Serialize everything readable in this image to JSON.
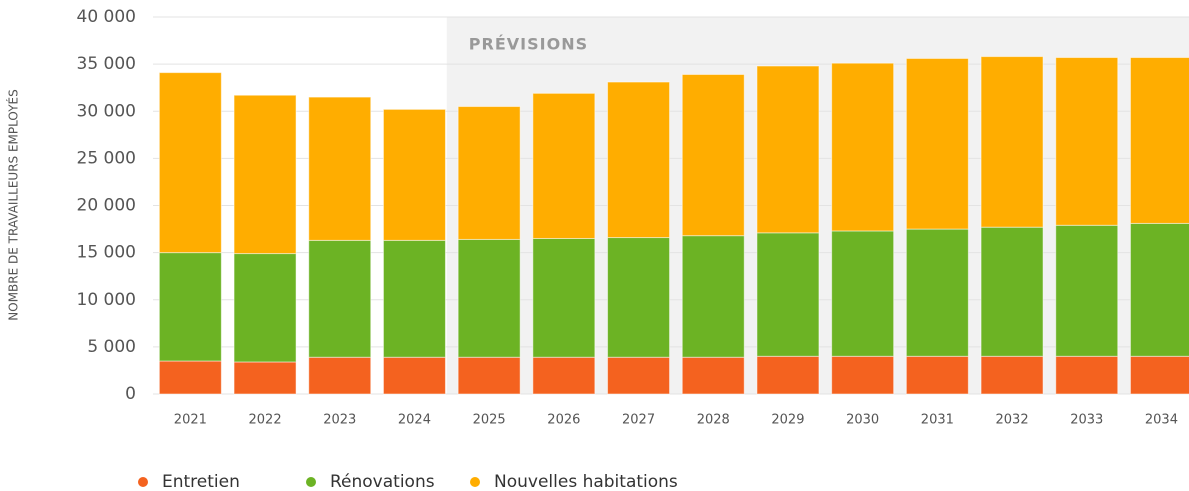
{
  "chart_data": {
    "type": "stacked_bar",
    "y_axis_label": "NOMBRE DE TRAVAILLEURS EMPLOYÉS",
    "annotation": "PRÉVISIONS",
    "shaded_from": "2025",
    "categories": [
      "2021",
      "2022",
      "2023",
      "2024",
      "2025",
      "2026",
      "2027",
      "2028",
      "2029",
      "2030",
      "2031",
      "2032",
      "2033",
      "2034"
    ],
    "series": [
      {
        "name": "Entretien",
        "color": "#f4621f",
        "values": [
          3500,
          3400,
          3900,
          3900,
          3900,
          3900,
          3900,
          3900,
          4000,
          4000,
          4000,
          4000,
          4000,
          4000
        ]
      },
      {
        "name": "Rénovations",
        "color": "#6cb324",
        "values": [
          11500,
          11500,
          12400,
          12400,
          12500,
          12600,
          12700,
          12900,
          13100,
          13300,
          13500,
          13700,
          13900,
          14100
        ]
      },
      {
        "name": "Nouvelles habitations",
        "color": "#ffad00",
        "values": [
          19100,
          16800,
          15200,
          13900,
          14100,
          15400,
          16500,
          17100,
          17700,
          17800,
          18100,
          18100,
          17800,
          17600
        ]
      }
    ],
    "ylim": [
      0,
      40000
    ],
    "yticks": [
      0,
      {
        "value": 5000,
        "label": "5 000"
      },
      {
        "value": 10000,
        "label": "10 000"
      },
      {
        "value": 15000,
        "label": "15 000"
      },
      {
        "value": 20000,
        "label": "20 000"
      },
      {
        "value": 25000,
        "label": "25 000"
      },
      {
        "value": 30000,
        "label": "30 000"
      },
      {
        "value": 35000,
        "label": "35 000"
      },
      {
        "value": 40000,
        "label": "40 000"
      }
    ],
    "grid": true
  }
}
